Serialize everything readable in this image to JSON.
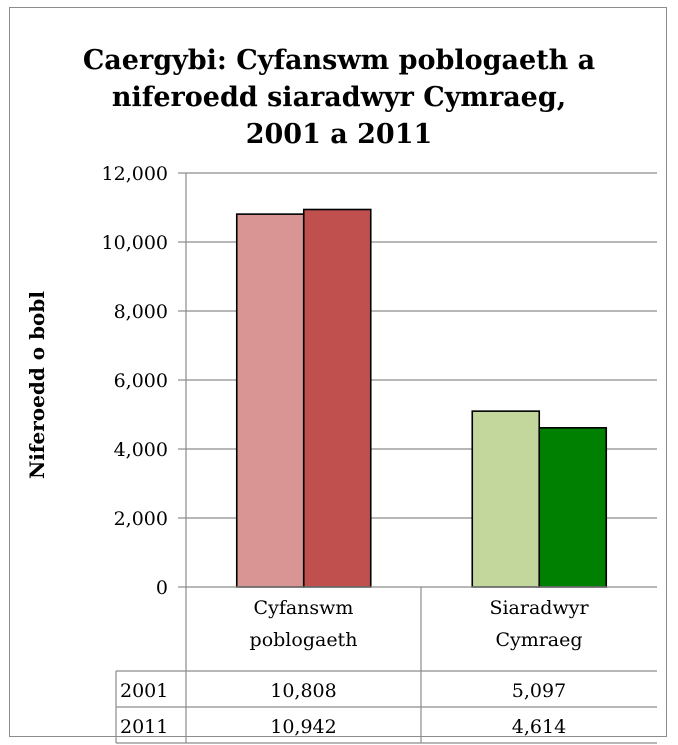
{
  "chart_data": {
    "type": "bar",
    "title_lines": [
      "Caergybi: Cyfanswm poblogaeth a",
      "niferoedd siaradwyr Cymraeg,",
      "2001 a 2011"
    ],
    "ylabel": "Niferoedd o bobl",
    "ylim": [
      0,
      12000
    ],
    "yticks": [
      "0",
      "2,000",
      "4,000",
      "6,000",
      "8,000",
      "10,000",
      "12,000"
    ],
    "categories": [
      [
        "Cyfanswm",
        "poblogaeth"
      ],
      [
        "Siaradwyr",
        "Cymraeg"
      ]
    ],
    "series": [
      {
        "name": "2001",
        "values": [
          10808,
          5097
        ],
        "labels": [
          "10,808",
          "5,097"
        ]
      },
      {
        "name": "2011",
        "values": [
          10942,
          4614
        ],
        "labels": [
          "10,942",
          "4,614"
        ]
      }
    ],
    "bar_colors": [
      [
        "#d99594",
        "#c0504d"
      ],
      [
        "#c3d69b",
        "#008000"
      ]
    ],
    "gridlines": true,
    "legend": "data table below chart"
  }
}
